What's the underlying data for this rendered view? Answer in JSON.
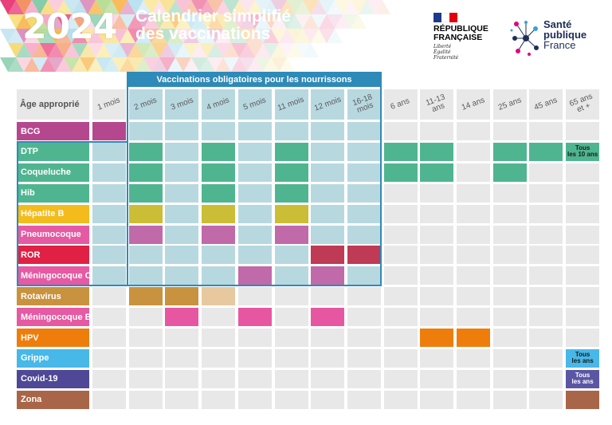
{
  "header": {
    "year": "2024",
    "title_line1": "Calendrier simplifié",
    "title_line2": "des vaccinations"
  },
  "logos": {
    "rf_name_line1": "RÉPUBLIQUE",
    "rf_name_line2": "FRANÇAISE",
    "rf_motto_1": "Liberté",
    "rf_motto_2": "Égalité",
    "rf_motto_3": "Fraternité",
    "spf_line1": "Santé",
    "spf_line2": "publique",
    "spf_line3": "France"
  },
  "table": {
    "age_header": "Âge approprié",
    "mandatory_banner": "Vaccinations obligatoires pour les nourrissons",
    "ages": [
      "1 mois",
      "2 mois",
      "3 mois",
      "4 mois",
      "5 mois",
      "11 mois",
      "12 mois",
      "16-18\nmois",
      "6 ans",
      "11-13\nans",
      "14 ans",
      "25 ans",
      "45 ans",
      "65 ans\net +"
    ],
    "vaccines": [
      {
        "name": "BCG",
        "color": "#b5478f",
        "cells": [
          0
        ]
      },
      {
        "name": "DTP",
        "color": "#4fb590",
        "cells": [
          1,
          3,
          5,
          8,
          9,
          11,
          12
        ],
        "note_col": 13,
        "note": "Tous\nles 10 ans",
        "note_color": "#4fb590"
      },
      {
        "name": "Coqueluche",
        "color": "#4fb590",
        "cells": [
          1,
          3,
          5,
          8,
          9,
          11
        ]
      },
      {
        "name": "Hib",
        "color": "#4fb590",
        "cells": [
          1,
          3,
          5
        ]
      },
      {
        "name": "Hépatite B",
        "color": "#f3bb1c",
        "cell_color": "#cbbd35",
        "cells": [
          1,
          3,
          5
        ]
      },
      {
        "name": "Pneumocoque",
        "color": "#e55aa2",
        "cell_color": "#c06aaa",
        "cells": [
          1,
          3,
          5
        ]
      },
      {
        "name": "ROR",
        "color": "#e02045",
        "cell_color": "#be3a55",
        "cells": [
          6,
          7
        ]
      },
      {
        "name": "Méningocoque C",
        "color": "#e55aa2",
        "cell_color": "#c06aaa",
        "cells": [
          4,
          6
        ]
      },
      {
        "name": "Rotavirus",
        "color": "#c8923e",
        "cells": [
          1,
          2
        ],
        "light_cells": [
          3
        ],
        "light_color": "#e8c89e"
      },
      {
        "name": "Méningocoque B",
        "color": "#e55aa2",
        "cell_color": "#e757a1",
        "cells": [
          2,
          4,
          6
        ]
      },
      {
        "name": "HPV",
        "color": "#ef7d0c",
        "cells": [
          9,
          10
        ]
      },
      {
        "name": "Grippe",
        "color": "#47b8e8",
        "note_col": 13,
        "note": "Tous\nles ans",
        "note_color": "#47b8e8"
      },
      {
        "name": "Covid-19",
        "color": "#4e4896",
        "note_col": 13,
        "note": "Tous\nles ans",
        "note_color": "#5b56a3",
        "note_text_color": "#ffffff"
      },
      {
        "name": "Zona",
        "color": "#a96548",
        "cells": [
          13
        ]
      }
    ]
  },
  "colors": {
    "grey_cell": "#e8e8e8",
    "mandatory_cell": "#b8d8e0",
    "frame_blue": "#2e8ab8"
  }
}
